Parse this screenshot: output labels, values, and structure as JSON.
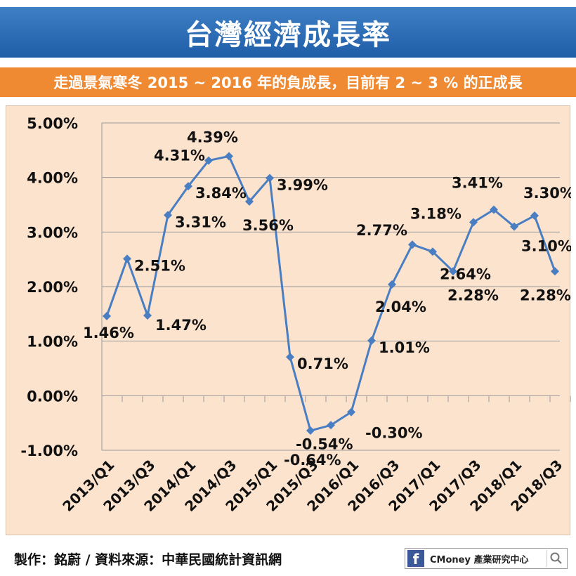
{
  "header": {
    "title": "台灣經濟成長率",
    "subtitle": "走過景氣寒冬 2015 ~ 2016 年的負成長，目前有 2 ~ 3 % 的正成長"
  },
  "footer": {
    "credit": "製作：銘蔚 / 資料來源：中華民國統計資訊網",
    "brand": "CMoney 產業研究中心",
    "facebook_glyph": "f"
  },
  "colors": {
    "line": "#4a7ec2",
    "title_bg": "#2d6cb5",
    "subtitle_bg": "#ef8a32",
    "panel_bg": "#fce3cd"
  },
  "chart_data": {
    "type": "line",
    "title": "台灣經濟成長率",
    "xlabel": "",
    "ylabel": "",
    "ylim": [
      -1,
      5
    ],
    "y_ticks": [
      -1,
      0,
      1,
      2,
      3,
      4,
      5
    ],
    "y_tick_labels": [
      "-1.00%",
      "0.00%",
      "1.00%",
      "2.00%",
      "3.00%",
      "4.00%",
      "5.00%"
    ],
    "categories": [
      "2013/Q1",
      "2013/Q2",
      "2013/Q3",
      "2013/Q4",
      "2014/Q1",
      "2014/Q2",
      "2014/Q3",
      "2014/Q4",
      "2015/Q1",
      "2015/Q2",
      "2015/Q3",
      "2015/Q4",
      "2016/Q1",
      "2016/Q2",
      "2016/Q3",
      "2016/Q4",
      "2017/Q1",
      "2017/Q2",
      "2017/Q3",
      "2017/Q4",
      "2018/Q1",
      "2018/Q2",
      "2018/Q3"
    ],
    "x_tick_labels": [
      "2013/Q1",
      "2013/Q3",
      "2014/Q1",
      "2014/Q3",
      "2015/Q1",
      "2015/Q3",
      "2016/Q1",
      "2016/Q3",
      "2017/Q1",
      "2017/Q3",
      "2018/Q1",
      "2018/Q3"
    ],
    "series": [
      {
        "name": "經濟成長率",
        "values": [
          1.46,
          2.51,
          1.47,
          3.31,
          3.84,
          4.31,
          4.39,
          3.56,
          3.99,
          0.71,
          -0.64,
          -0.54,
          -0.3,
          1.01,
          2.04,
          2.77,
          2.64,
          2.28,
          3.18,
          3.41,
          3.1,
          3.3,
          2.28
        ],
        "labels": [
          "1.46%",
          "2.51%",
          "1.47%",
          "3.31%",
          "3.84%",
          "4.31%",
          "4.39%",
          "3.56%",
          "3.99%",
          "0.71%",
          "-0.64%",
          "-0.54%",
          "-0.30%",
          "1.01%",
          "2.04%",
          "2.77%",
          "2.64%",
          "2.28%",
          "3.18%",
          "3.41%",
          "3.10%",
          "3.30%",
          "2.28%"
        ]
      }
    ],
    "grid": true,
    "legend": "none"
  }
}
